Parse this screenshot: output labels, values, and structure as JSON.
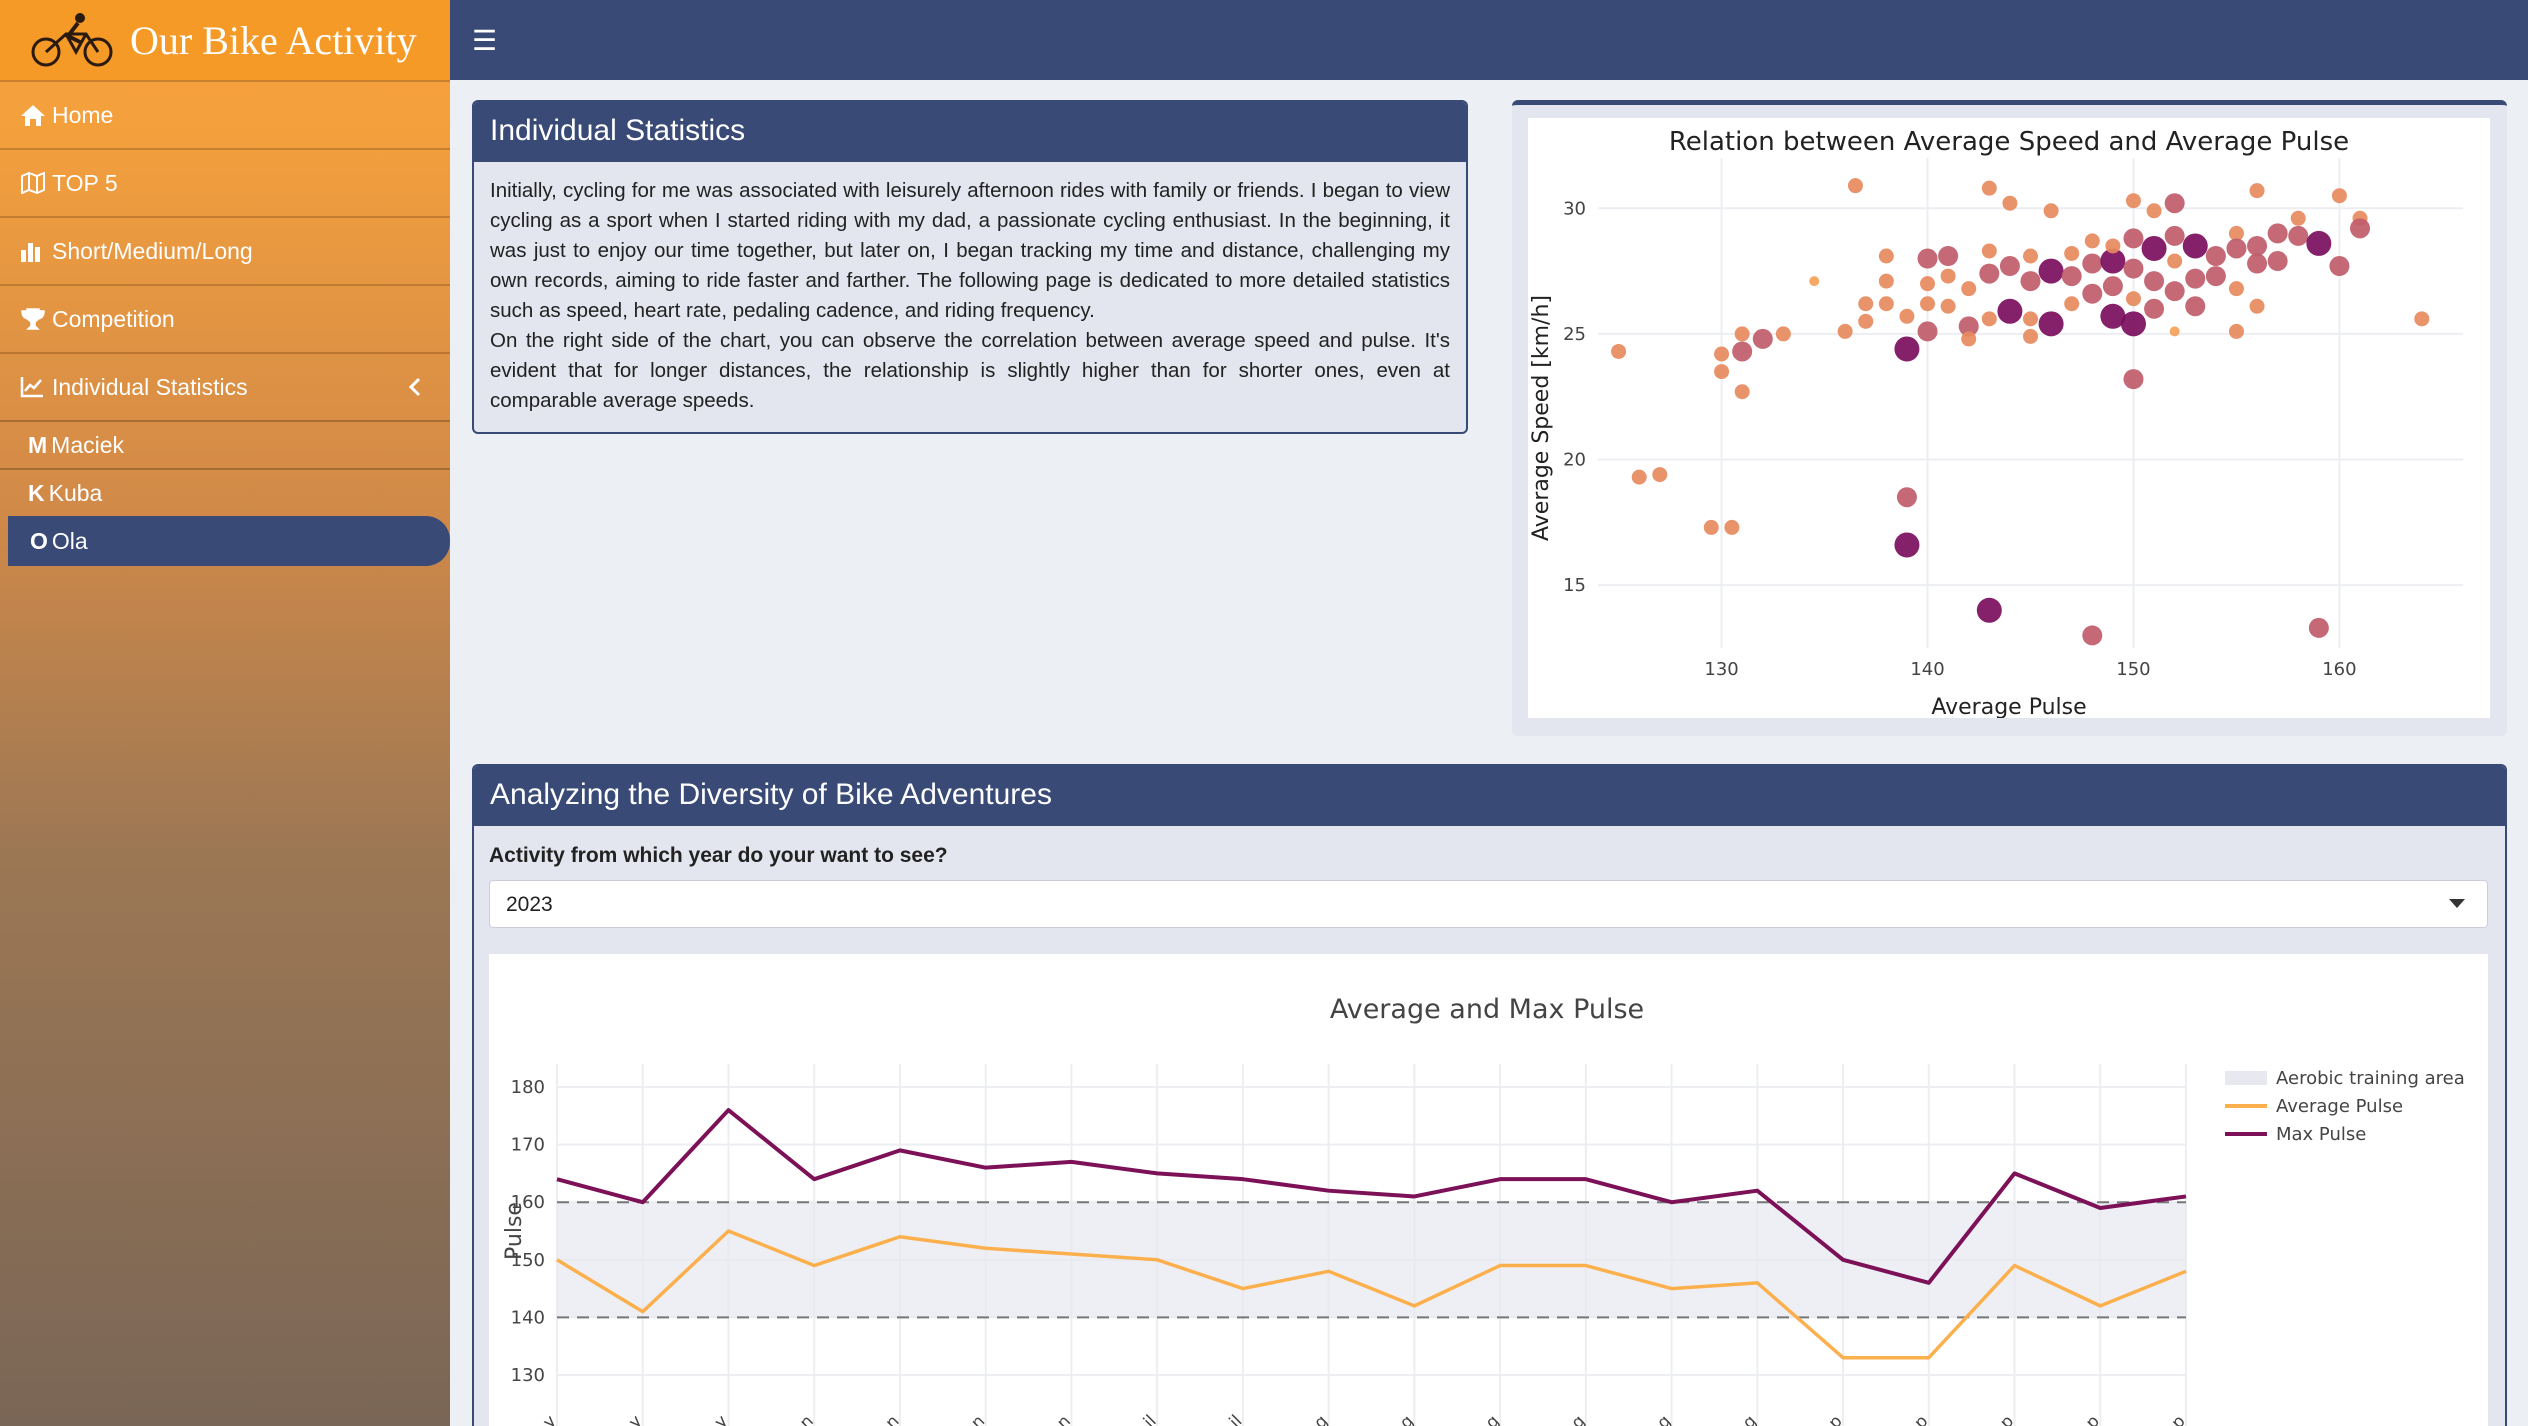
{
  "app": {
    "title": "Our Bike Activity"
  },
  "sidebar": {
    "items": [
      {
        "label": "Home",
        "icon": "home-icon"
      },
      {
        "label": "TOP 5",
        "icon": "map-icon"
      },
      {
        "label": "Short/Medium/Long",
        "icon": "bar-chart-icon"
      },
      {
        "label": "Competition",
        "icon": "trophy-icon"
      },
      {
        "label": "Individual Statistics",
        "icon": "line-chart-icon"
      }
    ],
    "subitems": [
      {
        "letter": "M",
        "label": "Maciek"
      },
      {
        "letter": "K",
        "label": "Kuba"
      },
      {
        "letter": "O",
        "label": "Ola"
      }
    ]
  },
  "stats": {
    "title": "Individual Statistics",
    "p1": "Initially, cycling for me was associated with leisurely afternoon rides with family or friends. I began to view cycling as a sport when I started riding with my dad, a passionate cycling enthusiast. In the beginning, it was just to enjoy our time together, but later on, I began tracking my time and distance, challenging my own records, aiming to ride faster and farther. The following page is dedicated to more detailed statistics such as speed, heart rate, pedaling cadence, and riding frequency.",
    "p2": "On the right side of the chart, you can observe the correlation between average speed and pulse. It's evident that for longer distances, the relationship is slightly higher than for shorter ones, even at comparable average speeds."
  },
  "diversity": {
    "title": "Analyzing the Diversity of Bike Adventures",
    "question": "Activity from which year do your want to see?",
    "selected_year": "2023"
  },
  "chart_data": [
    {
      "type": "scatter",
      "title": "Relation between Average Speed and Average Pulse",
      "xlabel": "Average Pulse",
      "ylabel": "Average Speed [km/h]",
      "xticks": [
        130,
        140,
        150,
        160
      ],
      "yticks": [
        15,
        20,
        25,
        30
      ],
      "xlim": [
        124,
        166
      ],
      "ylim": [
        12.5,
        32
      ],
      "grid": true,
      "points": [
        {
          "x": 125,
          "y": 24.3,
          "s": 1
        },
        {
          "x": 126,
          "y": 19.3,
          "s": 1
        },
        {
          "x": 127,
          "y": 19.4,
          "s": 1
        },
        {
          "x": 130,
          "y": 24.2,
          "s": 1
        },
        {
          "x": 130,
          "y": 23.5,
          "s": 1
        },
        {
          "x": 129.5,
          "y": 17.3,
          "s": 1
        },
        {
          "x": 130.5,
          "y": 17.3,
          "s": 1
        },
        {
          "x": 131,
          "y": 22.7,
          "s": 1
        },
        {
          "x": 131,
          "y": 24.3,
          "s": 2
        },
        {
          "x": 131,
          "y": 25,
          "s": 1
        },
        {
          "x": 132,
          "y": 24.8,
          "s": 2
        },
        {
          "x": 133,
          "y": 25,
          "s": 1
        },
        {
          "x": 134.5,
          "y": 27.1,
          "s": 0
        },
        {
          "x": 136,
          "y": 25.1,
          "s": 1
        },
        {
          "x": 136.5,
          "y": 30.9,
          "s": 1
        },
        {
          "x": 137,
          "y": 26.2,
          "s": 1
        },
        {
          "x": 137,
          "y": 25.5,
          "s": 1
        },
        {
          "x": 138,
          "y": 28.1,
          "s": 1
        },
        {
          "x": 138,
          "y": 27.1,
          "s": 1
        },
        {
          "x": 138,
          "y": 26.2,
          "s": 1
        },
        {
          "x": 139,
          "y": 25.7,
          "s": 1
        },
        {
          "x": 139,
          "y": 24.4,
          "s": 3
        },
        {
          "x": 139,
          "y": 18.5,
          "s": 2
        },
        {
          "x": 139,
          "y": 16.6,
          "s": 3
        },
        {
          "x": 140,
          "y": 27,
          "s": 1
        },
        {
          "x": 140,
          "y": 26.2,
          "s": 1
        },
        {
          "x": 140,
          "y": 25.1,
          "s": 2
        },
        {
          "x": 140,
          "y": 28,
          "s": 2
        },
        {
          "x": 141,
          "y": 28.1,
          "s": 2
        },
        {
          "x": 141,
          "y": 27.3,
          "s": 1
        },
        {
          "x": 141,
          "y": 26.1,
          "s": 1
        },
        {
          "x": 142,
          "y": 26.8,
          "s": 1
        },
        {
          "x": 142,
          "y": 25.3,
          "s": 2
        },
        {
          "x": 142,
          "y": 24.8,
          "s": 1
        },
        {
          "x": 143,
          "y": 28.3,
          "s": 1
        },
        {
          "x": 143,
          "y": 27.4,
          "s": 2
        },
        {
          "x": 143,
          "y": 25.6,
          "s": 1
        },
        {
          "x": 143,
          "y": 30.8,
          "s": 1
        },
        {
          "x": 143,
          "y": 14,
          "s": 3
        },
        {
          "x": 144,
          "y": 30.2,
          "s": 1
        },
        {
          "x": 144,
          "y": 27.7,
          "s": 2
        },
        {
          "x": 144,
          "y": 25.9,
          "s": 3
        },
        {
          "x": 145,
          "y": 28.1,
          "s": 1
        },
        {
          "x": 145,
          "y": 27.1,
          "s": 2
        },
        {
          "x": 145,
          "y": 25.6,
          "s": 1
        },
        {
          "x": 145,
          "y": 24.9,
          "s": 1
        },
        {
          "x": 146,
          "y": 27.5,
          "s": 3
        },
        {
          "x": 146,
          "y": 25.4,
          "s": 3
        },
        {
          "x": 146,
          "y": 29.9,
          "s": 1
        },
        {
          "x": 147,
          "y": 28.2,
          "s": 1
        },
        {
          "x": 147,
          "y": 27.3,
          "s": 2
        },
        {
          "x": 147,
          "y": 26.2,
          "s": 1
        },
        {
          "x": 148,
          "y": 28.7,
          "s": 1
        },
        {
          "x": 148,
          "y": 27.8,
          "s": 2
        },
        {
          "x": 148,
          "y": 26.6,
          "s": 2
        },
        {
          "x": 148,
          "y": 13,
          "s": 2
        },
        {
          "x": 149,
          "y": 27.9,
          "s": 3
        },
        {
          "x": 149,
          "y": 26.9,
          "s": 2
        },
        {
          "x": 149,
          "y": 25.7,
          "s": 3
        },
        {
          "x": 149,
          "y": 28.5,
          "s": 1
        },
        {
          "x": 150,
          "y": 30.3,
          "s": 1
        },
        {
          "x": 150,
          "y": 28.8,
          "s": 2
        },
        {
          "x": 150,
          "y": 27.6,
          "s": 2
        },
        {
          "x": 150,
          "y": 26.4,
          "s": 1
        },
        {
          "x": 150,
          "y": 25.4,
          "s": 3
        },
        {
          "x": 150,
          "y": 23.2,
          "s": 2
        },
        {
          "x": 151,
          "y": 29.9,
          "s": 1
        },
        {
          "x": 151,
          "y": 28.4,
          "s": 3
        },
        {
          "x": 151,
          "y": 27.1,
          "s": 2
        },
        {
          "x": 151,
          "y": 26,
          "s": 2
        },
        {
          "x": 152,
          "y": 30.2,
          "s": 2
        },
        {
          "x": 152,
          "y": 28.9,
          "s": 2
        },
        {
          "x": 152,
          "y": 27.9,
          "s": 1
        },
        {
          "x": 152,
          "y": 26.7,
          "s": 2
        },
        {
          "x": 152,
          "y": 25.1,
          "s": 0
        },
        {
          "x": 153,
          "y": 28.5,
          "s": 3
        },
        {
          "x": 153,
          "y": 27.2,
          "s": 2
        },
        {
          "x": 153,
          "y": 26.1,
          "s": 2
        },
        {
          "x": 154,
          "y": 28.1,
          "s": 2
        },
        {
          "x": 154,
          "y": 27.3,
          "s": 2
        },
        {
          "x": 155,
          "y": 29,
          "s": 1
        },
        {
          "x": 155,
          "y": 28.4,
          "s": 2
        },
        {
          "x": 155,
          "y": 26.8,
          "s": 1
        },
        {
          "x": 155,
          "y": 25.1,
          "s": 1
        },
        {
          "x": 156,
          "y": 30.7,
          "s": 1
        },
        {
          "x": 156,
          "y": 28.5,
          "s": 2
        },
        {
          "x": 156,
          "y": 27.8,
          "s": 2
        },
        {
          "x": 156,
          "y": 26.1,
          "s": 1
        },
        {
          "x": 157,
          "y": 29,
          "s": 2
        },
        {
          "x": 157,
          "y": 27.9,
          "s": 2
        },
        {
          "x": 158,
          "y": 29.6,
          "s": 1
        },
        {
          "x": 158,
          "y": 28.9,
          "s": 2
        },
        {
          "x": 159,
          "y": 28.6,
          "s": 3
        },
        {
          "x": 159,
          "y": 13.3,
          "s": 2
        },
        {
          "x": 160,
          "y": 30.5,
          "s": 1
        },
        {
          "x": 160,
          "y": 27.7,
          "s": 2
        },
        {
          "x": 161,
          "y": 29.6,
          "s": 1
        },
        {
          "x": 161,
          "y": 29.2,
          "s": 2
        },
        {
          "x": 164,
          "y": 25.6,
          "s": 1
        }
      ]
    },
    {
      "type": "line",
      "title": "Average and Max Pulse",
      "ylabel": "Pulse",
      "yticks": [
        130,
        140,
        150,
        160,
        170,
        180
      ],
      "ylim": [
        126,
        184
      ],
      "aerobic_band": [
        140,
        160
      ],
      "series": [
        {
          "name": "Average Pulse",
          "color": "#fbb04d",
          "values": [
            150,
            141,
            155,
            149,
            154,
            152,
            151,
            150,
            145,
            148,
            142,
            149,
            149,
            145,
            146,
            133,
            133,
            149,
            142,
            148
          ]
        },
        {
          "name": "Max Pulse",
          "color": "#7c1158",
          "values": [
            164,
            160,
            176,
            164,
            169,
            166,
            167,
            165,
            164,
            162,
            161,
            164,
            164,
            160,
            162,
            150,
            146,
            165,
            159,
            161
          ]
        }
      ],
      "legend": [
        {
          "name": "Aerobic training area",
          "color": "#e7e8f0"
        },
        {
          "name": "Average Pulse",
          "color": "#fbb04d"
        },
        {
          "name": "Max Pulse",
          "color": "#7c1158"
        }
      ],
      "xtick_labels": [
        "y",
        "y",
        "y",
        "n",
        "n",
        "n",
        "n",
        "il",
        "il",
        "g",
        "g",
        "g",
        "g",
        "g",
        "g",
        "p",
        "p",
        "p",
        "p",
        "p"
      ],
      "legend_position": "right"
    }
  ]
}
